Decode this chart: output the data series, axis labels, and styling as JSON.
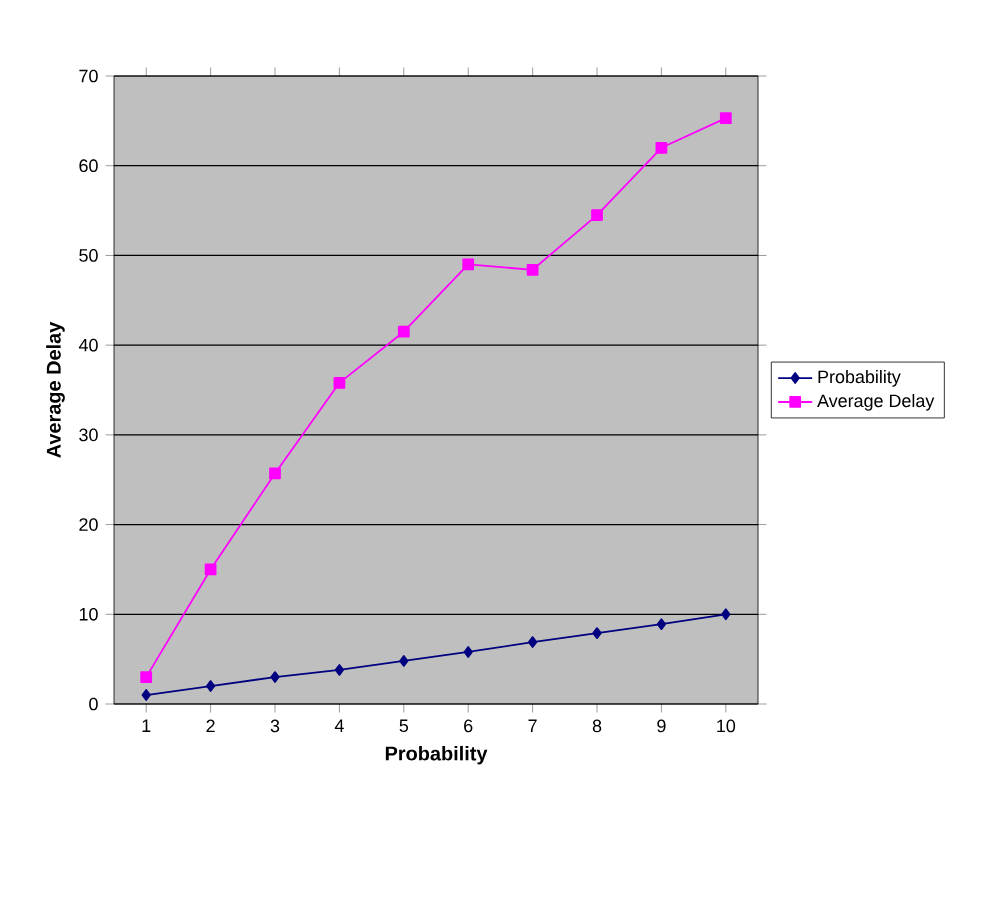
{
  "chart_data": {
    "type": "line",
    "xlabel": "Probability",
    "ylabel": "Average Delay",
    "categories": [
      "1",
      "2",
      "3",
      "4",
      "5",
      "6",
      "7",
      "8",
      "9",
      "10"
    ],
    "series": [
      {
        "name": "Probability",
        "color": "#000080",
        "marker": "diamond",
        "values": [
          1,
          2,
          3,
          3.8,
          4.8,
          5.8,
          6.9,
          7.9,
          8.9,
          10
        ]
      },
      {
        "name": "Average Delay",
        "color": "#ff00ff",
        "marker": "square",
        "values": [
          3,
          15,
          25.7,
          35.8,
          41.5,
          49,
          48.4,
          54.5,
          62,
          65.3
        ]
      }
    ],
    "ylim": [
      0,
      70
    ],
    "yticks": [
      0,
      10,
      20,
      30,
      40,
      50,
      60,
      70
    ],
    "grid": "y",
    "legend": "right",
    "line_style": "solid"
  }
}
